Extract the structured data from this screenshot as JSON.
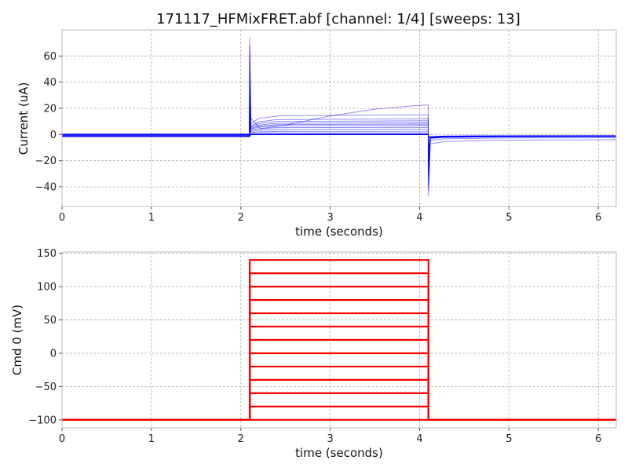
{
  "title": "171117_HFMixFRET.abf [channel: 1/4] [sweeps: 13]",
  "colors": {
    "current": "#0000ff",
    "command": "#ff0000",
    "grid": "#b0b0b0"
  },
  "chart_data": [
    {
      "type": "line",
      "title": "171117_HFMixFRET.abf [channel: 1/4] [sweeps: 13]",
      "xlabel": "time (seconds)",
      "ylabel": "Current (uA)",
      "xlim": [
        0,
        6.2
      ],
      "ylim": [
        -55,
        80
      ],
      "xticks": [
        0,
        1,
        2,
        3,
        4,
        5,
        6
      ],
      "xtick_labels": [
        "0",
        "1",
        "2",
        "3",
        "4",
        "5",
        "6"
      ],
      "yticks": [
        -40,
        -20,
        0,
        20,
        40,
        60
      ],
      "ytick_labels": [
        "−40",
        "−20",
        "0",
        "20",
        "40",
        "60"
      ],
      "grid": true,
      "legend": "none",
      "pulse_start": 2.1,
      "pulse_end": 4.1,
      "peak_on": 74,
      "peak_off": -47,
      "sweeps": [
        {
          "baseline": -1.5,
          "step": 0,
          "tail": -1.5
        },
        {
          "baseline": -1.2,
          "step": 0.5,
          "tail": -1.3
        },
        {
          "baseline": -1.0,
          "step": 1.2,
          "tail": -1.2
        },
        {
          "baseline": -0.8,
          "step": 2.5,
          "tail": -1.1
        },
        {
          "baseline": -0.6,
          "step": 4.0,
          "tail": -1.0
        },
        {
          "baseline": -0.4,
          "step": 5.5,
          "tail": -1.0
        },
        {
          "baseline": -0.2,
          "step": 7.0,
          "tail": -0.9
        },
        {
          "baseline": -0.1,
          "step": 8.0,
          "tail": -0.9
        },
        {
          "baseline": 0.0,
          "step": 9.0,
          "tail": -1.0
        },
        {
          "baseline": 0.1,
          "step": 10.5,
          "tail": -1.2
        },
        {
          "baseline": 0.2,
          "step": 12.0,
          "tail": -1.6
        },
        {
          "baseline": 0.3,
          "step": 15.0,
          "tail": -2.5
        },
        {
          "baseline": 0.4,
          "step": 22.5,
          "tail": -4.0
        }
      ]
    },
    {
      "type": "line",
      "xlabel": "time (seconds)",
      "ylabel": "Cmd 0 (mV)",
      "xlim": [
        0,
        6.2
      ],
      "ylim": [
        -112,
        152
      ],
      "xticks": [
        0,
        1,
        2,
        3,
        4,
        5,
        6
      ],
      "xtick_labels": [
        "0",
        "1",
        "2",
        "3",
        "4",
        "5",
        "6"
      ],
      "yticks": [
        -100,
        -50,
        0,
        50,
        100,
        150
      ],
      "ytick_labels": [
        "−100",
        "−50",
        "0",
        "50",
        "100",
        "150"
      ],
      "grid": true,
      "legend": "none",
      "holding": -100,
      "pulse_start": 2.1,
      "pulse_end": 4.1,
      "levels": [
        -100,
        -80,
        -60,
        -40,
        -20,
        0,
        20,
        40,
        60,
        80,
        100,
        120,
        140
      ]
    }
  ]
}
